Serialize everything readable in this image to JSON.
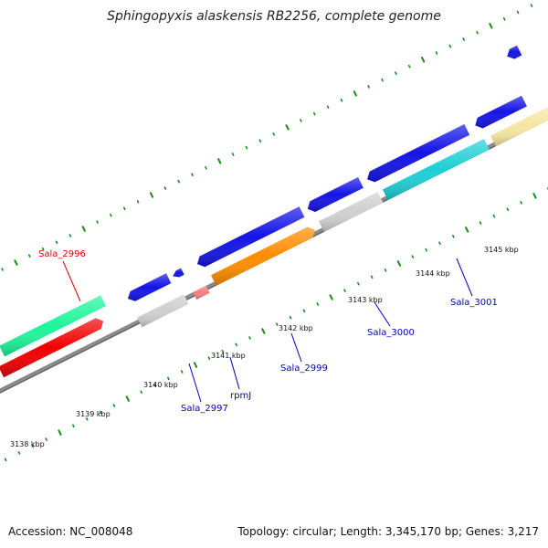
{
  "title": "Sphingopyxis alaskensis RB2256, complete genome",
  "footer": {
    "accession": "Accession: NC_008048",
    "summary": "Topology: circular; Length: 3,345,170 bp; Genes: 3,217"
  },
  "ticks": [
    {
      "label": "3138 kbp"
    },
    {
      "label": "3139 kbp"
    },
    {
      "label": "3140 kbp"
    },
    {
      "label": "3141 kbp"
    },
    {
      "label": "3142 kbp"
    },
    {
      "label": "3143 kbp"
    },
    {
      "label": "3144 kbp"
    },
    {
      "label": "3145 kbp"
    }
  ],
  "gene_labels": [
    {
      "name": "Sala_2996",
      "color": "#e00000"
    },
    {
      "name": "Sala_2997",
      "color": "#0000c0"
    },
    {
      "name": "rpmJ",
      "color": "#0000c0"
    },
    {
      "name": "Sala_2999",
      "color": "#0000c0"
    },
    {
      "name": "Sala_3000",
      "color": "#0000c0"
    },
    {
      "name": "Sala_3001",
      "color": "#0000c0"
    }
  ],
  "colors": {
    "blue": "#1414e6",
    "red": "#f00000",
    "green": "#1ef59b",
    "steelblue": "#4682b4",
    "orange": "#ff8c00",
    "cyan": "#1ecfd6",
    "khaki": "#f5e6a0",
    "gray": "#cfcfcf",
    "pink": "#f08080",
    "backbone": "#8a8a8a",
    "tick": "#138f13"
  }
}
